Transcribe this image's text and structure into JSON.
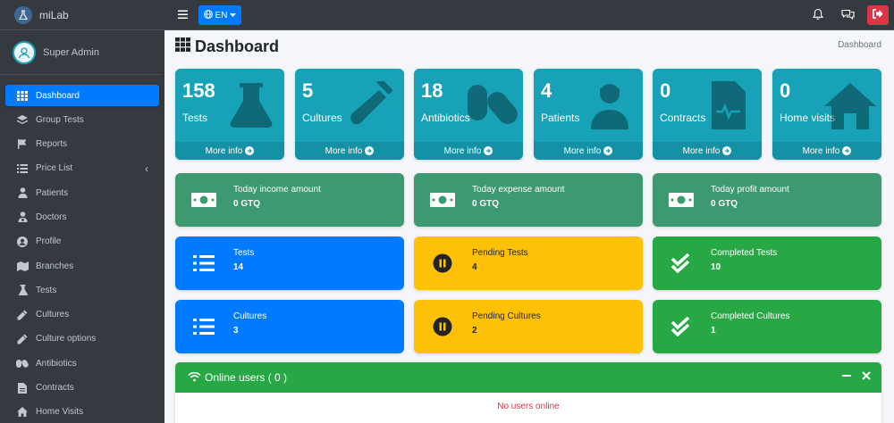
{
  "app": {
    "brand": "miLab",
    "user": "Super Admin"
  },
  "sidebar": {
    "items": [
      {
        "label": "Dashboard",
        "icon": "grid-icon"
      },
      {
        "label": "Group Tests",
        "icon": "layers-icon"
      },
      {
        "label": "Reports",
        "icon": "flag-icon"
      },
      {
        "label": "Price List",
        "icon": "list-icon"
      },
      {
        "label": "Patients",
        "icon": "patient-icon"
      },
      {
        "label": "Doctors",
        "icon": "doctor-icon"
      },
      {
        "label": "Profile",
        "icon": "user-circle-icon"
      },
      {
        "label": "Branches",
        "icon": "map-icon"
      },
      {
        "label": "Tests",
        "icon": "flask-icon"
      },
      {
        "label": "Cultures",
        "icon": "eyedropper-icon"
      },
      {
        "label": "Culture options",
        "icon": "eyedropper-icon"
      },
      {
        "label": "Antibiotics",
        "icon": "capsules-icon"
      },
      {
        "label": "Contracts",
        "icon": "file-icon"
      },
      {
        "label": "Home Visits",
        "icon": "home-icon"
      }
    ]
  },
  "topbar": {
    "language": "EN"
  },
  "header": {
    "title": "Dashboard",
    "breadcrumb": "Dashboard"
  },
  "stats": [
    {
      "value": "158",
      "label": "Tests",
      "more": "More info",
      "icon": "flask-icon"
    },
    {
      "value": "5",
      "label": "Cultures",
      "more": "More info",
      "icon": "vial-icon"
    },
    {
      "value": "18",
      "label": "Antibiotics",
      "more": "More info",
      "icon": "capsules-icon"
    },
    {
      "value": "4",
      "label": "Patients",
      "more": "More info",
      "icon": "patient-icon"
    },
    {
      "value": "0",
      "label": "Contracts",
      "more": "More info",
      "icon": "file-medical-icon"
    },
    {
      "value": "0",
      "label": "Home visits",
      "more": "More info",
      "icon": "home-icon"
    }
  ],
  "finance": [
    {
      "title": "Today income amount",
      "value": "0 GTQ",
      "icon": "money-icon"
    },
    {
      "title": "Today expense amount",
      "value": "0 GTQ",
      "icon": "money-icon"
    },
    {
      "title": "Today profit amount",
      "value": "0 GTQ",
      "icon": "money-icon"
    }
  ],
  "tests": [
    {
      "title": "Tests",
      "value": "14",
      "icon": "list-icon"
    },
    {
      "title": "Pending Tests",
      "value": "4",
      "icon": "pause-icon"
    },
    {
      "title": "Completed Tests",
      "value": "10",
      "icon": "check-icon"
    }
  ],
  "cultures": [
    {
      "title": "Cultures",
      "value": "3",
      "icon": "list-icon"
    },
    {
      "title": "Pending Cultures",
      "value": "2",
      "icon": "pause-icon"
    },
    {
      "title": "Completed Cultures",
      "value": "1",
      "icon": "check-icon"
    }
  ],
  "online": {
    "title": "Online users ( 0 )",
    "empty": "No users online"
  },
  "colors": {
    "sidebar": "#343a40",
    "primary": "#007bff",
    "info": "#17a2b8",
    "olive": "#3d9970",
    "warning": "#ffc107",
    "success": "#28a745",
    "danger": "#dc3545"
  }
}
